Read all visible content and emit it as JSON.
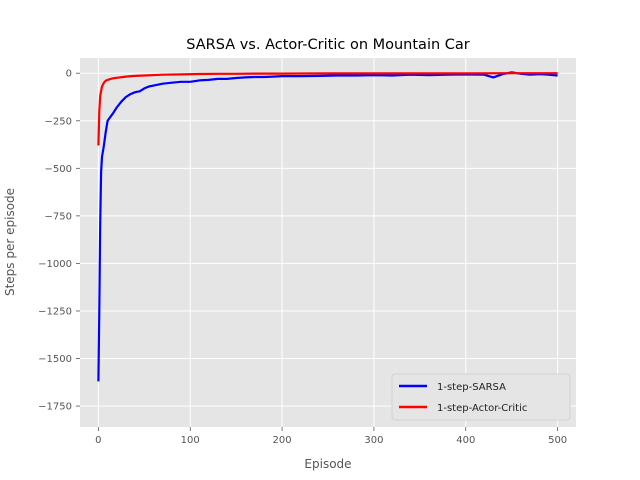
{
  "chart_data": {
    "type": "line",
    "title": "SARSA vs. Actor-Critic on Mountain Car",
    "xlabel": "Episode",
    "ylabel": "Steps per episode",
    "xlim": [
      -20,
      520
    ],
    "ylim": [
      -1860,
      80
    ],
    "xticks": [
      0,
      100,
      200,
      300,
      400,
      500
    ],
    "yticks": [
      0,
      -250,
      -500,
      -750,
      -1000,
      -1250,
      -1500,
      -1750
    ],
    "xtick_labels": [
      "0",
      "100",
      "200",
      "300",
      "400",
      "500"
    ],
    "ytick_labels": [
      "0",
      "−250",
      "−500",
      "−750",
      "−1000",
      "−1250",
      "−1500",
      "−1750"
    ],
    "grid": true,
    "legend_position": "lower-right",
    "series": [
      {
        "name": "1-step-SARSA",
        "color": "#0000ff",
        "points": [
          [
            0,
            -1620
          ],
          [
            1,
            -1250
          ],
          [
            2,
            -800
          ],
          [
            3,
            -520
          ],
          [
            4,
            -440
          ],
          [
            6,
            -380
          ],
          [
            8,
            -310
          ],
          [
            10,
            -250
          ],
          [
            13,
            -230
          ],
          [
            16,
            -210
          ],
          [
            20,
            -180
          ],
          [
            25,
            -150
          ],
          [
            30,
            -125
          ],
          [
            35,
            -110
          ],
          [
            40,
            -100
          ],
          [
            45,
            -95
          ],
          [
            50,
            -80
          ],
          [
            55,
            -70
          ],
          [
            60,
            -65
          ],
          [
            70,
            -55
          ],
          [
            80,
            -50
          ],
          [
            90,
            -45
          ],
          [
            100,
            -45
          ],
          [
            110,
            -38
          ],
          [
            120,
            -35
          ],
          [
            130,
            -30
          ],
          [
            140,
            -30
          ],
          [
            150,
            -25
          ],
          [
            160,
            -22
          ],
          [
            170,
            -20
          ],
          [
            180,
            -20
          ],
          [
            190,
            -18
          ],
          [
            200,
            -15
          ],
          [
            220,
            -15
          ],
          [
            240,
            -14
          ],
          [
            260,
            -12
          ],
          [
            280,
            -12
          ],
          [
            300,
            -10
          ],
          [
            320,
            -12
          ],
          [
            340,
            -8
          ],
          [
            360,
            -10
          ],
          [
            380,
            -8
          ],
          [
            400,
            -6
          ],
          [
            420,
            -8
          ],
          [
            430,
            -22
          ],
          [
            440,
            -5
          ],
          [
            450,
            5
          ],
          [
            460,
            -3
          ],
          [
            470,
            -8
          ],
          [
            480,
            -5
          ],
          [
            490,
            -8
          ],
          [
            500,
            -12
          ]
        ]
      },
      {
        "name": "1-step-Actor-Critic",
        "color": "#ff0000",
        "points": [
          [
            0,
            -380
          ],
          [
            1,
            -200
          ],
          [
            2,
            -120
          ],
          [
            4,
            -70
          ],
          [
            6,
            -50
          ],
          [
            8,
            -40
          ],
          [
            10,
            -35
          ],
          [
            15,
            -28
          ],
          [
            20,
            -24
          ],
          [
            30,
            -18
          ],
          [
            40,
            -14
          ],
          [
            50,
            -12
          ],
          [
            70,
            -8
          ],
          [
            90,
            -6
          ],
          [
            110,
            -4
          ],
          [
            130,
            -3
          ],
          [
            150,
            -3
          ],
          [
            170,
            -2
          ],
          [
            200,
            -2
          ],
          [
            250,
            -1
          ],
          [
            300,
            -1
          ],
          [
            350,
            -1
          ],
          [
            400,
            -1
          ],
          [
            450,
            0
          ],
          [
            500,
            0
          ]
        ]
      }
    ]
  }
}
